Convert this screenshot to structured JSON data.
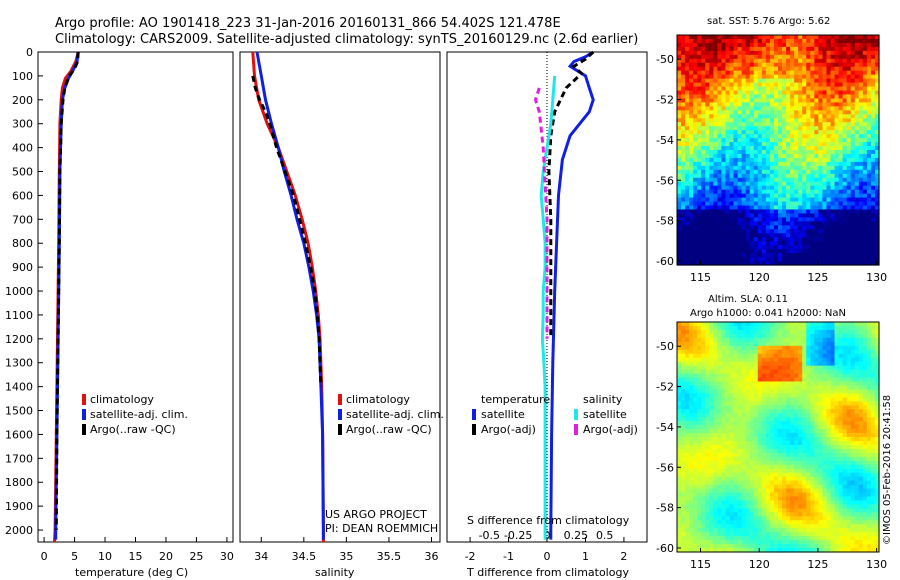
{
  "title_line1": "Argo profile: AO 1901418_223 31-Jan-2016 20160131_866 54.402S 121.478E",
  "title_line2": "Climatology: CARS2009. Satellite-adjusted climatology: synTS_20160129.nc (2.6d earlier)",
  "project_line1": "US ARGO PROJECT",
  "project_line2": "PI: DEAN ROEMMICH",
  "sst_title": "sat. SST: 5.76 Argo: 5.62",
  "sla_title1": "Altim. SLA: 0.11",
  "sla_title2": "Argo h1000: 0.041 h2000: NaN",
  "timestamp": "©IMOS 05-Feb-2016 20:41:58",
  "colors": {
    "climatology": "#e01010",
    "satellite": "#1020e0",
    "argo": "#000000",
    "sal_satellite": "#20e8e8",
    "sal_argo": "#e020e0"
  },
  "chart_data": [
    {
      "type": "line",
      "xlabel": "temperature (deg C)",
      "ylim": [
        0,
        2050
      ],
      "xlim": [
        -1,
        31
      ],
      "xticks": [
        0,
        5,
        10,
        15,
        20,
        25,
        30
      ],
      "yticks": [
        0,
        100,
        200,
        300,
        400,
        500,
        600,
        700,
        800,
        900,
        1000,
        1100,
        1200,
        1300,
        1400,
        1500,
        1600,
        1700,
        1800,
        1900,
        2000
      ],
      "legend": [
        "climatology",
        "satellite-adj. clim.",
        "Argo(..raw -QC)"
      ],
      "series": [
        {
          "key": "climatology",
          "values": [
            [
              5.6,
              0
            ],
            [
              5.2,
              40
            ],
            [
              4.4,
              80
            ],
            [
              3.5,
              110
            ],
            [
              3.0,
              150
            ],
            [
              2.8,
              200
            ],
            [
              2.6,
              300
            ],
            [
              2.5,
              500
            ],
            [
              2.4,
              800
            ],
            [
              2.2,
              1200
            ],
            [
              2.0,
              1600
            ],
            [
              1.8,
              2000
            ],
            [
              1.7,
              2050
            ]
          ]
        },
        {
          "key": "satellite",
          "values": [
            [
              5.6,
              0
            ],
            [
              5.4,
              40
            ],
            [
              4.7,
              80
            ],
            [
              4.0,
              110
            ],
            [
              3.4,
              150
            ],
            [
              3.0,
              200
            ],
            [
              2.8,
              300
            ],
            [
              2.6,
              500
            ],
            [
              2.5,
              800
            ],
            [
              2.3,
              1200
            ],
            [
              2.1,
              1600
            ],
            [
              1.9,
              2000
            ],
            [
              1.9,
              2040
            ]
          ]
        },
        {
          "key": "argo",
          "values": [
            [
              5.6,
              0
            ],
            [
              5.5,
              40
            ],
            [
              5.0,
              70
            ],
            [
              4.1,
              100
            ],
            [
              3.4,
              150
            ],
            [
              3.1,
              200
            ],
            [
              2.8,
              300
            ],
            [
              2.6,
              500
            ],
            [
              2.5,
              800
            ],
            [
              2.3,
              1200
            ],
            [
              2.1,
              1600
            ],
            [
              2.0,
              2000
            ]
          ]
        }
      ]
    },
    {
      "type": "line",
      "xlabel": "salinity",
      "xlim": [
        33.75,
        36.1
      ],
      "xticks": [
        34,
        34.5,
        35,
        35.5,
        36
      ],
      "ylim": [
        0,
        2050
      ],
      "legend": [
        "climatology",
        "satellite-adj. clim.",
        "Argo(..raw -QC)"
      ],
      "series": [
        {
          "key": "climatology",
          "values": [
            [
              33.9,
              0
            ],
            [
              33.92,
              100
            ],
            [
              33.97,
              200
            ],
            [
              34.07,
              300
            ],
            [
              34.2,
              400
            ],
            [
              34.3,
              500
            ],
            [
              34.4,
              600
            ],
            [
              34.48,
              700
            ],
            [
              34.55,
              800
            ],
            [
              34.6,
              900
            ],
            [
              34.64,
              1000
            ],
            [
              34.67,
              1100
            ],
            [
              34.69,
              1200
            ],
            [
              34.71,
              1400
            ],
            [
              34.72,
              1600
            ],
            [
              34.73,
              2000
            ],
            [
              34.73,
              2050
            ]
          ]
        },
        {
          "key": "satellite",
          "values": [
            [
              33.95,
              0
            ],
            [
              34.0,
              100
            ],
            [
              34.05,
              200
            ],
            [
              34.12,
              300
            ],
            [
              34.2,
              400
            ],
            [
              34.27,
              500
            ],
            [
              34.35,
              600
            ],
            [
              34.42,
              700
            ],
            [
              34.5,
              800
            ],
            [
              34.56,
              900
            ],
            [
              34.61,
              1000
            ],
            [
              34.65,
              1100
            ],
            [
              34.68,
              1200
            ],
            [
              34.7,
              1400
            ],
            [
              34.72,
              1600
            ],
            [
              34.73,
              2000
            ],
            [
              34.73,
              2040
            ]
          ]
        },
        {
          "key": "argo",
          "values": [
            [
              33.9,
              100
            ],
            [
              33.93,
              150
            ],
            [
              33.98,
              200
            ],
            [
              34.05,
              250
            ],
            [
              34.1,
              300
            ],
            [
              34.18,
              400
            ],
            [
              34.28,
              500
            ],
            [
              34.38,
              600
            ],
            [
              34.45,
              700
            ],
            [
              34.52,
              800
            ],
            [
              34.58,
              900
            ],
            [
              34.63,
              1000
            ],
            [
              34.66,
              1100
            ],
            [
              34.68,
              1200
            ],
            [
              34.7,
              1400
            ]
          ]
        }
      ]
    },
    {
      "type": "line",
      "xlabel": "T difference from climatology",
      "xlabel_top": "S difference from climatology",
      "xlim": [
        -2.6,
        2.6
      ],
      "xticks": [
        -2,
        -1,
        0,
        1,
        2
      ],
      "xticks_top": [
        "-0.5",
        "-0.25",
        "0",
        "0.25",
        "0.5"
      ],
      "ylim": [
        0,
        2050
      ],
      "legend_titles": [
        "temperature",
        "salinity"
      ],
      "legend": [
        "satellite",
        "Argo(-adj)",
        "satellite",
        "Argo(-adj)"
      ],
      "series": [
        {
          "key": "satellite",
          "values": [
            [
              1.2,
              0
            ],
            [
              1.0,
              20
            ],
            [
              0.7,
              40
            ],
            [
              0.6,
              60
            ],
            [
              1.0,
              100
            ],
            [
              1.1,
              150
            ],
            [
              1.2,
              200
            ],
            [
              1.1,
              250
            ],
            [
              0.6,
              350
            ],
            [
              0.4,
              450
            ],
            [
              0.3,
              600
            ],
            [
              0.25,
              800
            ],
            [
              0.2,
              1000
            ],
            [
              0.15,
              1300
            ],
            [
              0.12,
              1600
            ],
            [
              0.1,
              2000
            ],
            [
              0.1,
              2040
            ]
          ]
        },
        {
          "key": "argo",
          "values": [
            [
              1.2,
              0
            ],
            [
              1.0,
              30
            ],
            [
              0.7,
              60
            ],
            [
              0.9,
              90
            ],
            [
              0.5,
              150
            ],
            [
              0.2,
              250
            ],
            [
              0.1,
              350
            ],
            [
              0.05,
              500
            ],
            [
              0.1,
              700
            ],
            [
              0.1,
              900
            ],
            [
              0.1,
              1200
            ]
          ]
        },
        {
          "key": "sal_satellite",
          "values": [
            [
              0.2,
              100
            ],
            [
              0.15,
              200
            ],
            [
              0.1,
              300
            ],
            [
              0.0,
              400
            ],
            [
              -0.1,
              500
            ],
            [
              -0.15,
              600
            ],
            [
              -0.1,
              700
            ],
            [
              -0.05,
              800
            ],
            [
              -0.05,
              900
            ],
            [
              -0.1,
              1000
            ],
            [
              -0.1,
              1100
            ],
            [
              -0.12,
              1200
            ],
            [
              -0.08,
              1300
            ],
            [
              -0.05,
              1400
            ],
            [
              -0.05,
              1600
            ],
            [
              -0.05,
              2040
            ]
          ]
        },
        {
          "key": "sal_argo",
          "values": [
            [
              -0.2,
              150
            ],
            [
              -0.3,
              200
            ],
            [
              -0.2,
              250
            ],
            [
              -0.1,
              400
            ],
            [
              -0.05,
              550
            ],
            [
              0.0,
              700
            ],
            [
              0.0,
              900
            ],
            [
              0.0,
              1200
            ]
          ]
        }
      ]
    },
    {
      "type": "heatmap",
      "title": "sat. SST: 5.76 Argo: 5.62",
      "xlim": [
        113,
        130.2
      ],
      "ylim": [
        -60.2,
        -48.8
      ],
      "xticks": [
        115,
        120,
        125,
        130
      ],
      "yticks": [
        -50,
        -52,
        -54,
        -56,
        -58,
        -60
      ]
    },
    {
      "type": "heatmap",
      "title": "Altim. SLA: 0.11 / Argo h1000: 0.041 h2000: NaN",
      "xlim": [
        113,
        130.2
      ],
      "ylim": [
        -60.2,
        -48.8
      ],
      "xticks": [
        115,
        120,
        125,
        130
      ],
      "yticks": [
        -50,
        -52,
        -54,
        -56,
        -58,
        -60
      ]
    }
  ]
}
